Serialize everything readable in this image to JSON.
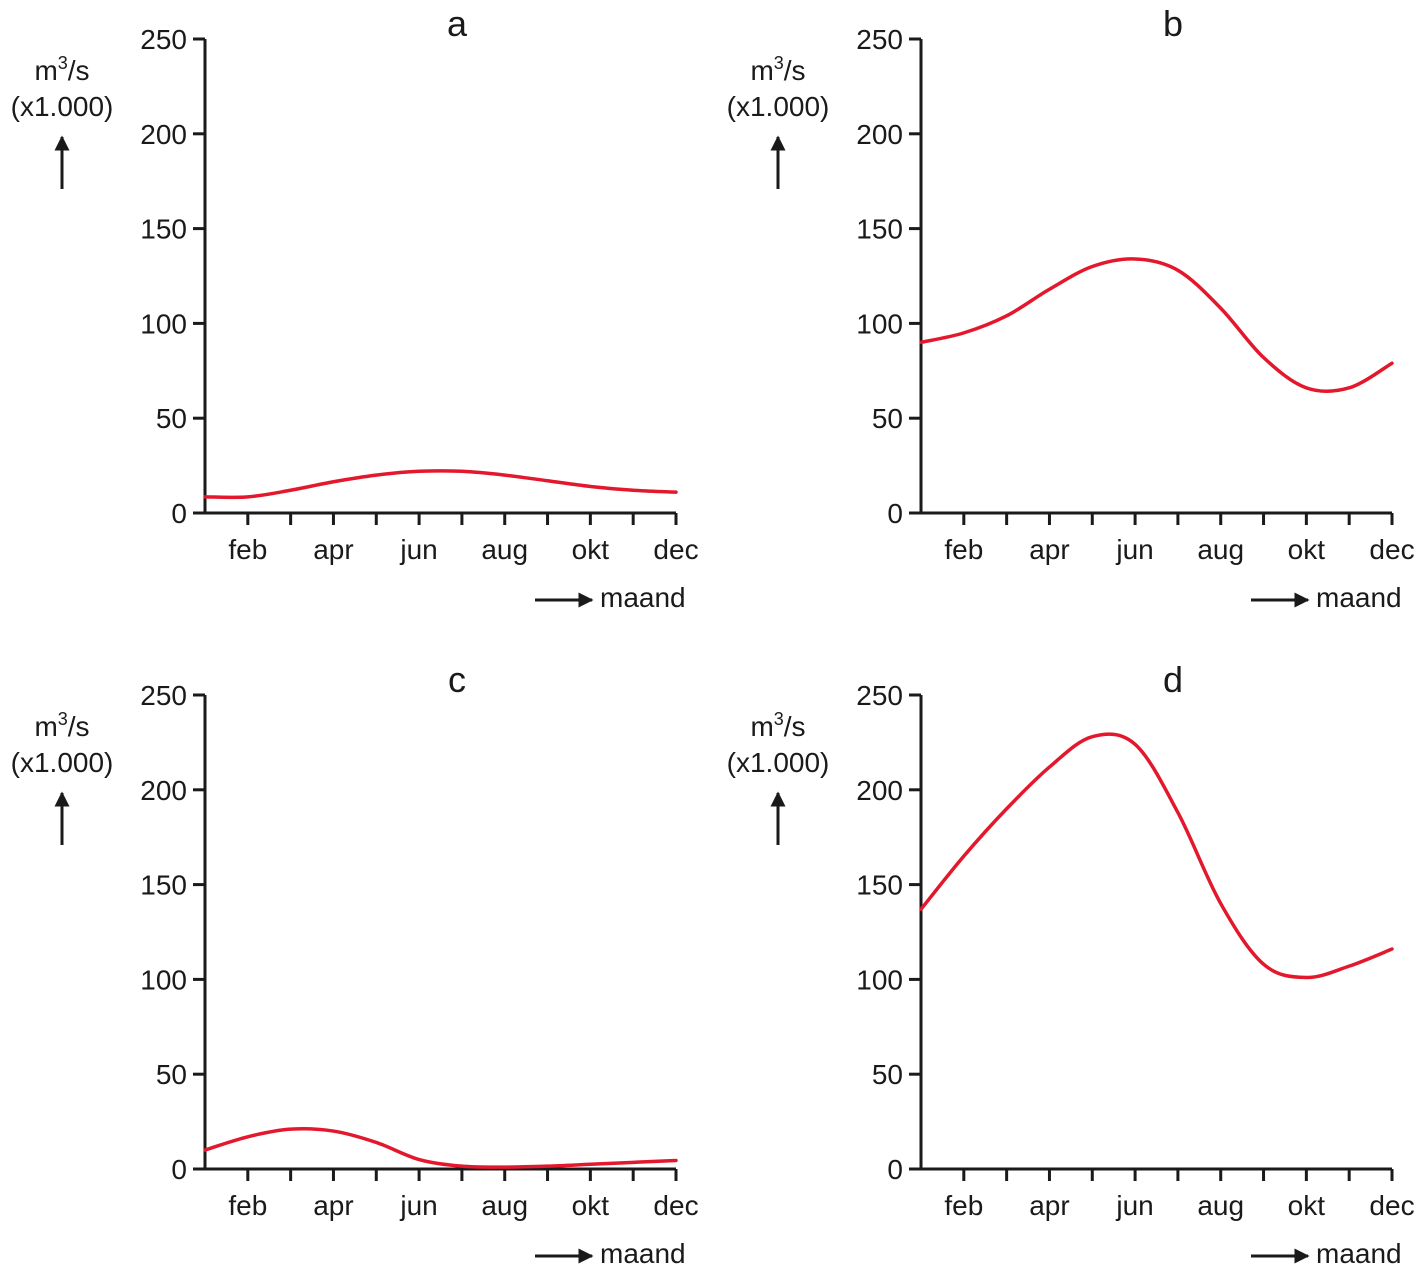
{
  "colors": {
    "series": "#e3182d",
    "axis": "#1a1a1a"
  },
  "shared": {
    "ylabel_unit": "m3/s",
    "ylabel_base": "m",
    "ylabel_sup": "3",
    "ylabel_rest": "/s",
    "ylabel_scale": "(x1.000)",
    "xlabel": "maand"
  },
  "chart_data": [
    {
      "type": "line",
      "title": "a",
      "xlabel": "maand",
      "ylabel": "m3/s (x1.000)",
      "categories": [
        "feb",
        "apr",
        "jun",
        "aug",
        "okt",
        "dec"
      ],
      "yticks": [
        0,
        50,
        100,
        150,
        200,
        250
      ],
      "ylim": [
        0,
        250
      ],
      "xlim": [
        1,
        12
      ],
      "grid": false,
      "series": [
        {
          "x": [
            1,
            2,
            3,
            4,
            5,
            6,
            7,
            8,
            9,
            10,
            11,
            12
          ],
          "values": [
            8.5,
            8.5,
            12,
            16.5,
            20,
            22,
            22,
            20,
            17,
            14,
            12,
            11
          ]
        }
      ]
    },
    {
      "type": "line",
      "title": "b",
      "xlabel": "maand",
      "ylabel": "m3/s (x1.000)",
      "categories": [
        "feb",
        "apr",
        "jun",
        "aug",
        "okt",
        "dec"
      ],
      "yticks": [
        0,
        50,
        100,
        150,
        200,
        250
      ],
      "ylim": [
        0,
        250
      ],
      "xlim": [
        1,
        12
      ],
      "grid": false,
      "series": [
        {
          "x": [
            1,
            2,
            3,
            4,
            5,
            6,
            7,
            8,
            9,
            10,
            11,
            12
          ],
          "values": [
            90,
            95,
            104,
            118,
            130,
            134,
            128,
            108,
            82,
            66,
            66,
            79
          ]
        }
      ]
    },
    {
      "type": "line",
      "title": "c",
      "xlabel": "maand",
      "ylabel": "m3/s (x1.000)",
      "categories": [
        "feb",
        "apr",
        "jun",
        "aug",
        "okt",
        "dec"
      ],
      "yticks": [
        0,
        50,
        100,
        150,
        200,
        250
      ],
      "ylim": [
        0,
        250
      ],
      "xlim": [
        1,
        12
      ],
      "grid": false,
      "series": [
        {
          "x": [
            1,
            2,
            3,
            4,
            5,
            6,
            7,
            8,
            9,
            10,
            11,
            12
          ],
          "values": [
            10,
            17,
            21,
            20,
            14,
            5,
            1.5,
            1,
            1.5,
            2.5,
            3.5,
            4.5
          ]
        }
      ]
    },
    {
      "type": "line",
      "title": "d",
      "xlabel": "maand",
      "ylabel": "m3/s (x1.000)",
      "categories": [
        "feb",
        "apr",
        "jun",
        "aug",
        "okt",
        "dec"
      ],
      "yticks": [
        0,
        50,
        100,
        150,
        200,
        250
      ],
      "ylim": [
        0,
        250
      ],
      "xlim": [
        1,
        12
      ],
      "grid": false,
      "series": [
        {
          "x": [
            1,
            2,
            3,
            4,
            5,
            6,
            7,
            8,
            9,
            10,
            11,
            12
          ],
          "values": [
            137,
            165,
            190,
            212,
            228,
            224,
            188,
            140,
            108,
            101,
            107,
            116
          ]
        }
      ]
    }
  ]
}
